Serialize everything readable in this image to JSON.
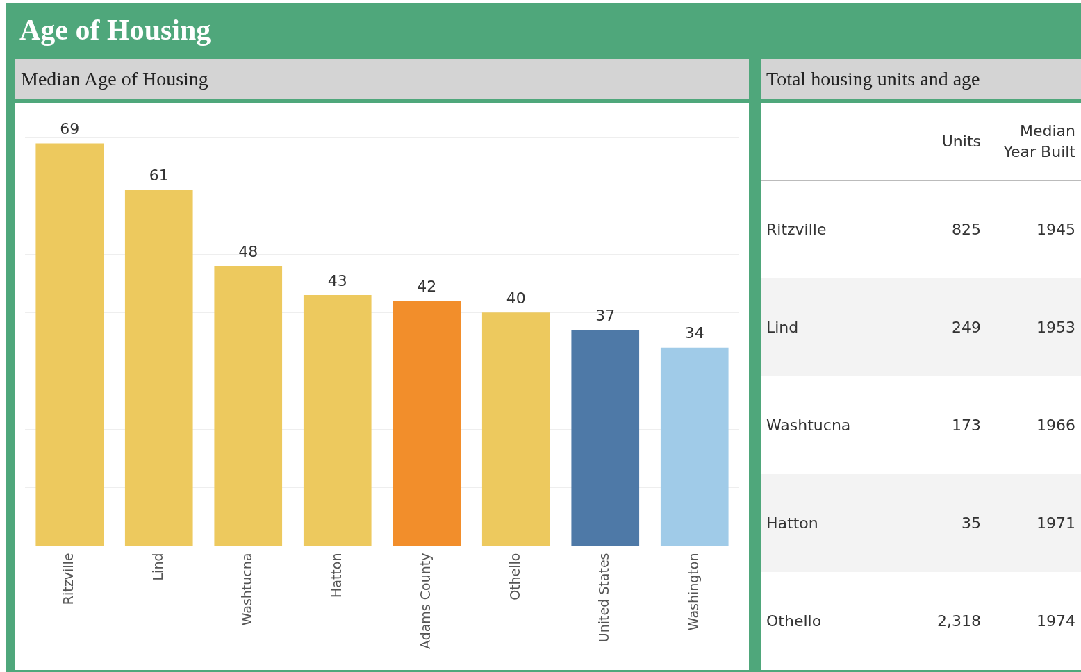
{
  "chart_data": [
    {
      "type": "bar",
      "title": "Age of Housing",
      "subtitle": "Median Age of Housing",
      "categories": [
        "Ritzville",
        "Lind",
        "Washtucna",
        "Hatton",
        "Adams County",
        "Othello",
        "United States",
        "Washington"
      ],
      "values": [
        69,
        61,
        48,
        43,
        42,
        40,
        37,
        34
      ],
      "colors": [
        "#edc95e",
        "#edc95e",
        "#edc95e",
        "#edc95e",
        "#f28e2b",
        "#edc95e",
        "#4e79a7",
        "#a0cbe8"
      ],
      "ylim": [
        0,
        70
      ],
      "yticks": [
        0,
        10,
        20,
        30,
        40,
        50,
        60,
        70
      ],
      "tick_labels": "x",
      "grid": "y",
      "data_labels": true
    },
    {
      "type": "other",
      "title": "Total housing units and age",
      "categories": [
        "Units",
        "Median Year Built"
      ],
      "y_categories": [
        "Ritzville",
        "Lind",
        "Washtucna",
        "Hatton",
        "Othello"
      ],
      "cell_labels": [
        [
          "825",
          "1945"
        ],
        [
          "249",
          "1953"
        ],
        [
          "173",
          "1966"
        ],
        [
          "35",
          "1971"
        ],
        [
          "2,318",
          "1974"
        ]
      ]
    }
  ]
}
